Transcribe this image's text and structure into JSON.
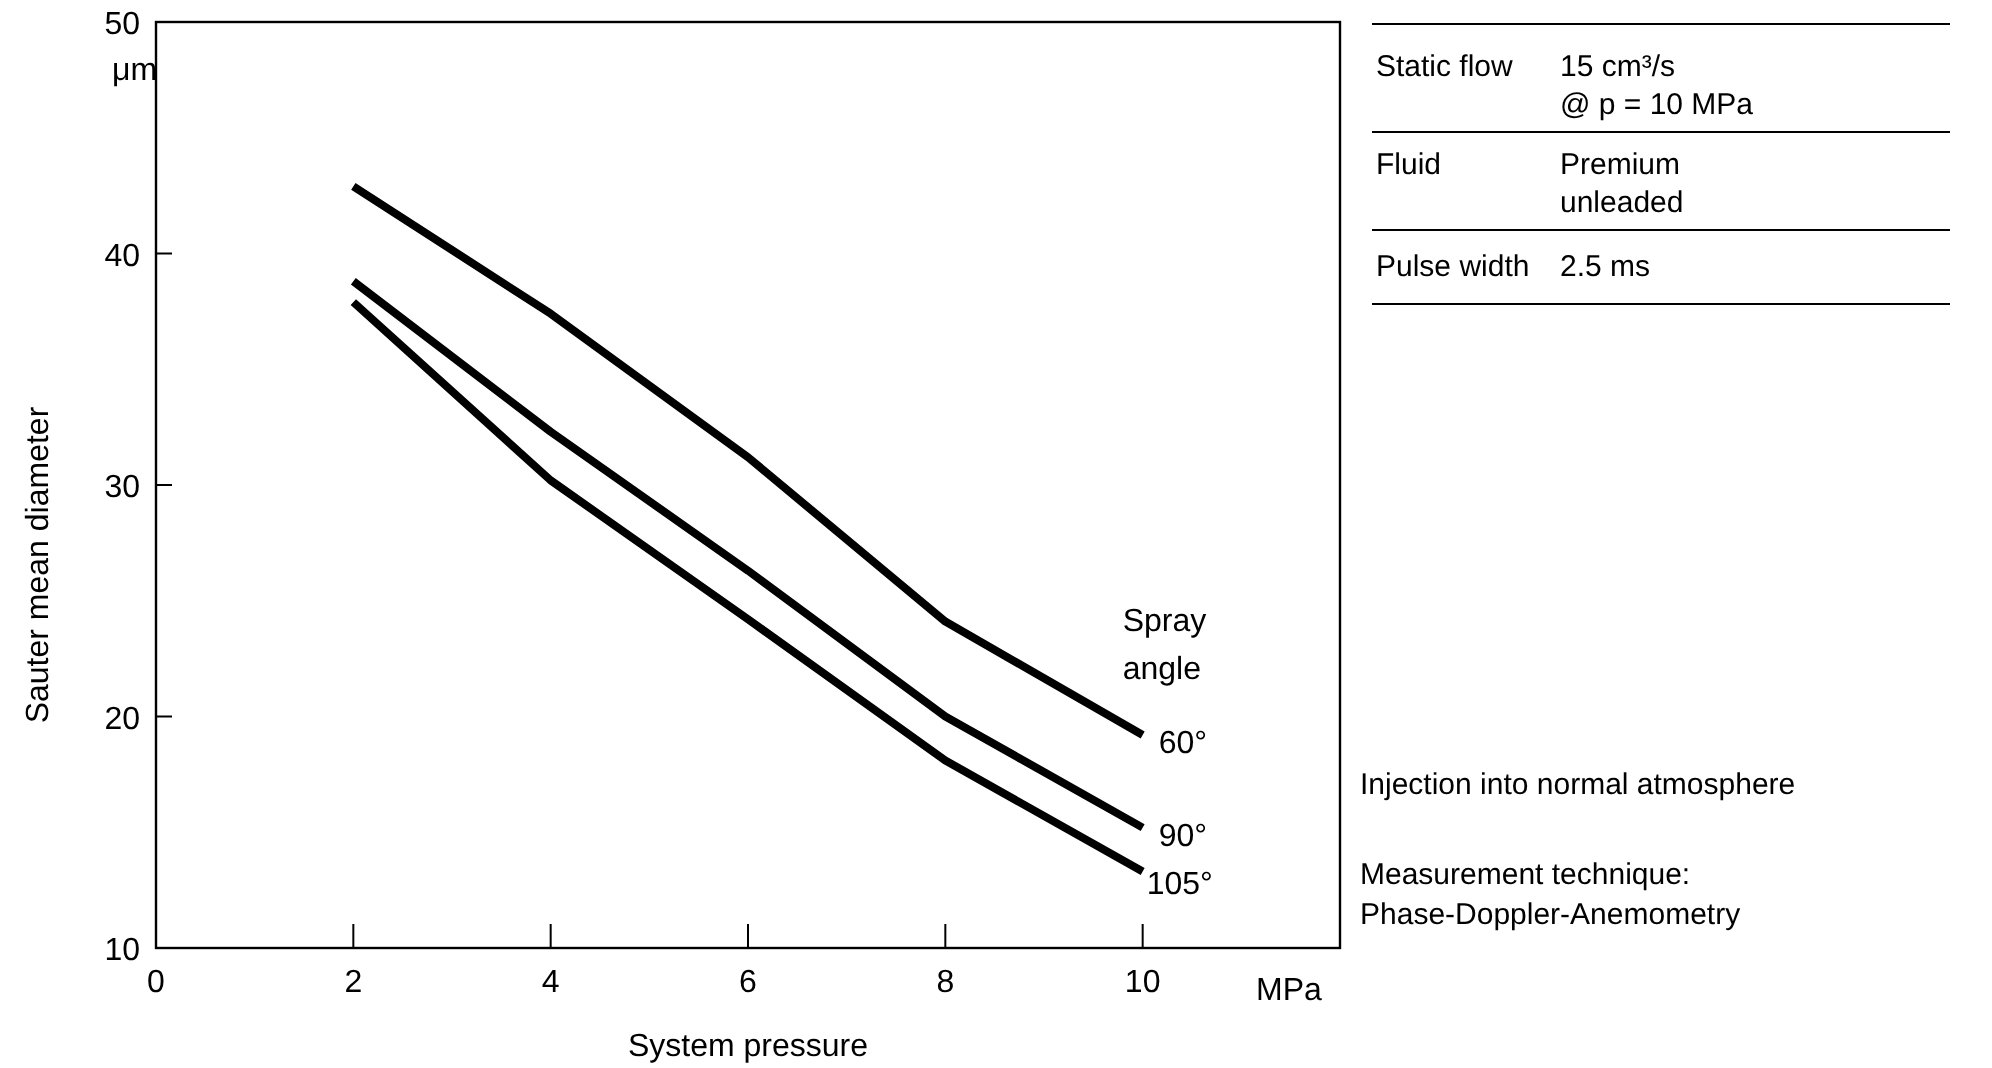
{
  "chart_data": {
    "type": "line",
    "xlabel": "System pressure",
    "ylabel": "Sauter mean diameter",
    "legend_title": "Spray angle",
    "x": [
      2,
      4,
      6,
      8,
      10
    ],
    "series": [
      {
        "name": "60°",
        "color": "#000000",
        "values": [
          42.9,
          37.4,
          31.2,
          24.1,
          19.2
        ]
      },
      {
        "name": "90°",
        "color": "#000000",
        "values": [
          38.8,
          32.3,
          26.3,
          20,
          15.2
        ]
      },
      {
        "name": "105°",
        "color": "#000000",
        "values": [
          37.9,
          30.2,
          24.2,
          18.1,
          13.3
        ]
      }
    ],
    "xlim": [
      0,
      12
    ],
    "xticks": [
      0,
      2,
      4,
      6,
      8,
      10
    ],
    "ylim": [
      10,
      50
    ],
    "yticks": [
      10,
      20,
      30,
      40,
      50
    ],
    "grid": false,
    "marker": "none",
    "line_style": "solid",
    "annotations": [
      "μm",
      "MPa",
      "Static flow",
      "15 cm³/s",
      "@ p = 10 MPa",
      "Fluid",
      "Premium",
      "unleaded",
      "Pulse width",
      "2.5 ms",
      "Injection into normal atmosphere",
      "Measurement technique:",
      "Phase-Doppler-Anemometry"
    ]
  }
}
